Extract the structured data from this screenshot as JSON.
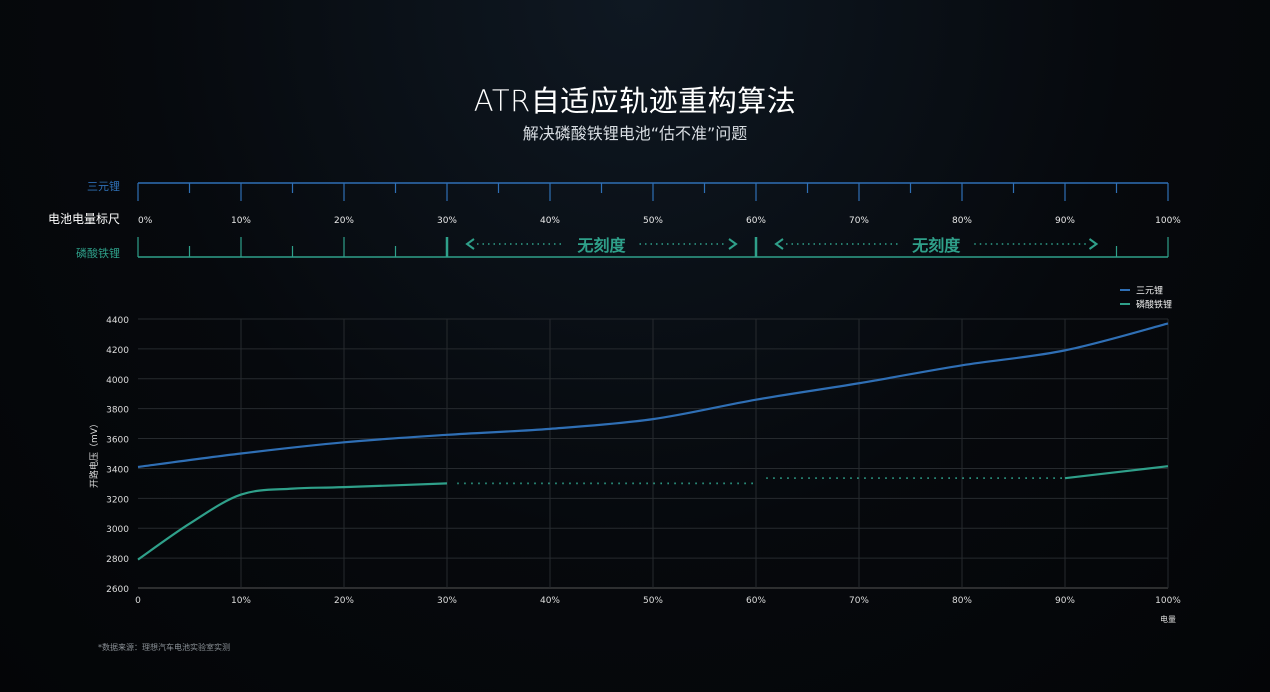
{
  "header": {
    "title": "ATR自适应轨迹重构算法",
    "subtitle": "解决磷酸铁锂电池“估不准”问题"
  },
  "ruler": {
    "top_label": "三元锂",
    "middle_label": "电池电量标尺",
    "bottom_label": "磷酸铁锂",
    "ticks": [
      "0%",
      "10%",
      "20%",
      "30%",
      "40%",
      "50%",
      "60%",
      "70%",
      "80%",
      "90%",
      "100%"
    ],
    "no_scale_label": "无刻度",
    "no_scale_ranges": [
      [
        30,
        60
      ],
      [
        60,
        95
      ]
    ]
  },
  "chart_data": {
    "type": "line",
    "ylabel": "开路电压（mV）",
    "xlabel": "电量",
    "ylim": [
      2600,
      4400
    ],
    "yticks": [
      2600,
      2800,
      3000,
      3200,
      3400,
      3600,
      3800,
      4000,
      4200,
      4400
    ],
    "xlim": [
      0,
      100
    ],
    "xtick_labels": [
      "0",
      "10%",
      "20%",
      "30%",
      "40%",
      "50%",
      "60%",
      "70%",
      "80%",
      "90%",
      "100%"
    ],
    "grid": true,
    "legend": "top-right",
    "series": [
      {
        "name": "三元锂",
        "color": "#2f6fb5",
        "segments": [
          {
            "style": "solid",
            "points": [
              [
                0,
                3410
              ],
              [
                10,
                3500
              ],
              [
                20,
                3575
              ],
              [
                30,
                3625
              ],
              [
                40,
                3665
              ],
              [
                50,
                3730
              ],
              [
                60,
                3860
              ],
              [
                70,
                3970
              ],
              [
                80,
                4090
              ],
              [
                90,
                4190
              ],
              [
                100,
                4370
              ]
            ]
          }
        ]
      },
      {
        "name": "磷酸铁锂",
        "color": "#2fa08a",
        "segments": [
          {
            "style": "solid",
            "points": [
              [
                0,
                2790
              ],
              [
                5,
                3030
              ],
              [
                10,
                3225
              ],
              [
                15,
                3265
              ],
              [
                20,
                3275
              ],
              [
                30,
                3300
              ]
            ]
          },
          {
            "style": "dotted",
            "points": [
              [
                31,
                3300
              ],
              [
                60,
                3300
              ]
            ]
          },
          {
            "style": "dotted",
            "points": [
              [
                61,
                3335
              ],
              [
                90,
                3335
              ]
            ]
          },
          {
            "style": "solid",
            "points": [
              [
                90,
                3335
              ],
              [
                100,
                3415
              ]
            ]
          }
        ]
      }
    ]
  },
  "footnote": "*数据来源：理想汽车电池实验室实测"
}
